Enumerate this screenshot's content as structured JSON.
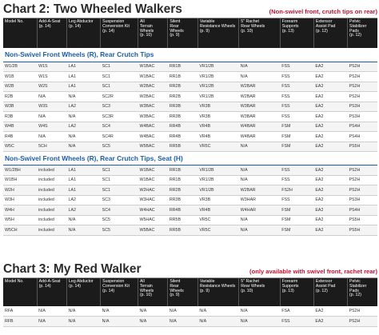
{
  "chart2": {
    "title": "Chart 2: Two Wheeled Walkers",
    "note": "(Non-swivel front, crutch tips on rear)",
    "headers": [
      "Model No.",
      "Add-A-Seat\n(p. 14)",
      "Leg Abductor\n(p. 14)",
      "Suspension\nConversion Kit\n(p. 14)",
      "All\nTerrain\nWheels\n(p. 10)",
      "Silent\nRear\nWheels\n(p. 9)",
      "Variable\nResistance Wheels\n(p. 9)",
      "5\" Rachet\nRear Wheels\n(p. 10)",
      "Forearm\nSupports\n(p. 13)",
      "Extensor\nAssist Pad\n(p. 12)",
      "Pelvic\nStabilizer\nPads\n(p. 12)"
    ],
    "section1": "Non-Swivel Front Wheels (R), Rear Crutch Tips",
    "rows1": [
      [
        "W1/2B",
        "W1S",
        "LA1",
        "SC1",
        "W1BAC",
        "RR1B",
        "VR1/2B",
        "N/A",
        "FSS",
        "EA2",
        "PS2H"
      ],
      [
        "W1B",
        "W1S",
        "LA1",
        "SC1",
        "W1BAC",
        "RR1B",
        "VR1/2B",
        "N/A",
        "FSS",
        "EA2",
        "PS2H"
      ],
      [
        "W2B",
        "W2S",
        "LA1",
        "SC1",
        "W2BAC",
        "RR2B",
        "VR1/2B",
        "W2BAR",
        "FSS",
        "EA2",
        "PS2H"
      ],
      [
        "R2B",
        "N/A",
        "N/A",
        "SC2R",
        "W2BAC",
        "RR2B",
        "VR1/2B",
        "W2BAR",
        "FSS",
        "EA2",
        "PS2H"
      ],
      [
        "W3B",
        "W3S",
        "LA2",
        "SC3",
        "W3BAC",
        "RR3B",
        "VR3B",
        "W3BAR",
        "FSS",
        "EA2",
        "PS3H"
      ],
      [
        "R3B",
        "N/A",
        "N/A",
        "SC3R",
        "W3BAC",
        "RR3B",
        "VR3B",
        "W3BAR",
        "FSS",
        "EA2",
        "PS3H"
      ],
      [
        "W4B",
        "W4S",
        "LA2",
        "SC4",
        "W4BAC",
        "RR4B",
        "VR4B",
        "W4BAR",
        "FSM",
        "EA2",
        "PS4H"
      ],
      [
        "R4B",
        "N/A",
        "N/A",
        "SC4R",
        "W4BAC",
        "RR4B",
        "VR4B",
        "W4BAR",
        "FSM",
        "EA2",
        "PS4H"
      ],
      [
        "W5C",
        "5CH",
        "N/A",
        "SC5",
        "W5BAC",
        "RR5B",
        "VR5C",
        "N/A",
        "FSM",
        "EA2",
        "PS5H"
      ]
    ],
    "section2": "Non-Swivel Front Wheels (R), Rear Crutch Tips, Seat (H)",
    "rows2": [
      [
        "W1/2BH",
        "included",
        "LA1",
        "SC1",
        "W1BAC",
        "RR1B",
        "VR1/2B",
        "N/A",
        "FSS",
        "EA2",
        "PS2H"
      ],
      [
        "W1BH",
        "included",
        "LA1",
        "SC1",
        "W1BAC",
        "RR1B",
        "VR1/2B",
        "N/A",
        "FSS",
        "EA2",
        "PS2H"
      ],
      [
        "W2H",
        "included",
        "LA1",
        "SC1",
        "W2HAC",
        "RR2B",
        "VR1/2B",
        "W2BAR",
        "FS2H",
        "EA2",
        "PS2H"
      ],
      [
        "W3H",
        "included",
        "LA2",
        "SC3",
        "W3HAC",
        "RR3B",
        "VR3B",
        "W3HAR",
        "FSS",
        "EA2",
        "PS3H"
      ],
      [
        "W4H",
        "included",
        "LA2",
        "SC4",
        "W4HAC",
        "RR4B",
        "VR4B",
        "W4HAR",
        "FSM",
        "EA2",
        "PS4H"
      ],
      [
        "W5H",
        "included",
        "N/A",
        "SC5",
        "W5HAC",
        "RR5B",
        "VR5C",
        "N/A",
        "FSM",
        "EA2",
        "PS5H"
      ],
      [
        "W5CH",
        "included",
        "N/A",
        "SC5",
        "W5BAC",
        "RR5B",
        "VR5C",
        "N/A",
        "FSM",
        "EA2",
        "PS5H"
      ]
    ]
  },
  "chart3": {
    "title": "Chart 3: My Red Walker",
    "note": "(only available with swivel front, rachet rear)",
    "headers": [
      "Model No.",
      "Add-A-Seat\n(p. 14)",
      "Leg Abductor\n(p. 14)",
      "Suspension\nConversion Kit\n(p. 14)",
      "All\nTerrain\nWheels\n(p. 10)",
      "Silent\nRear\nWheels\n(p. 9)",
      "Variable\nResistance Wheels\n(p. 9)",
      "5\" Rachet\nRear Wheels\n(p. 10)",
      "Forearm\nSupports\n(p. 13)",
      "Extensor\nAssist Pad\n(p. 12)",
      "Pelvic\nStabilizer\nPads\n(p. 12)"
    ],
    "rows": [
      [
        "RFA",
        "N/A",
        "N/A",
        "N/A",
        "N/A",
        "N/A",
        "N/A",
        "N/A",
        "FSA",
        "EA2",
        "PS2H"
      ],
      [
        "RFB",
        "N/A",
        "N/A",
        "N/A",
        "N/A",
        "N/A",
        "N/A",
        "N/A",
        "FSS",
        "EA2",
        "PS2H"
      ]
    ]
  }
}
